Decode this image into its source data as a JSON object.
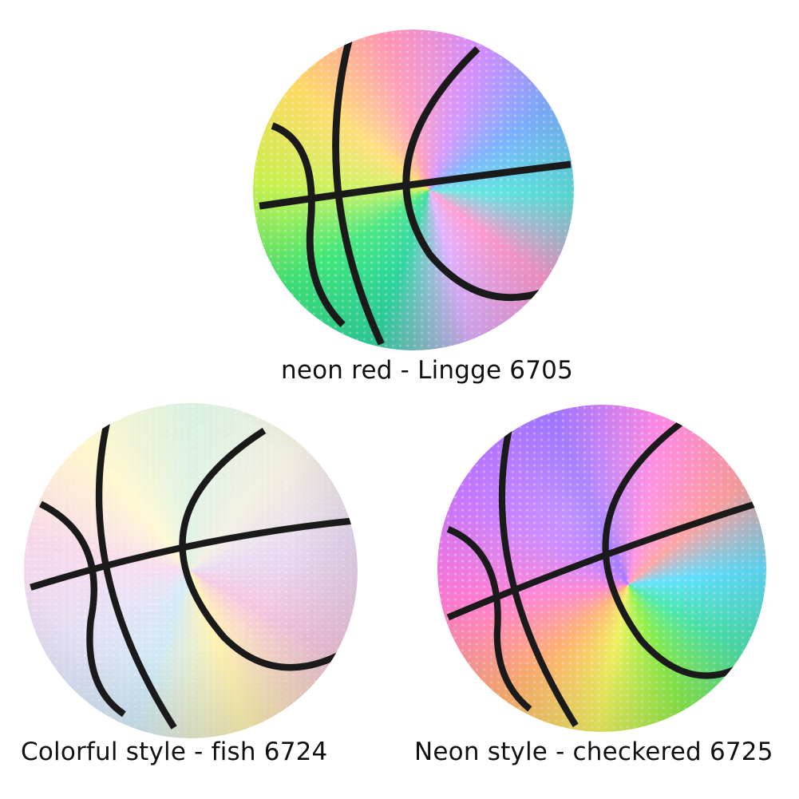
{
  "products": [
    {
      "caption": "neon red - Lingge 6705",
      "image": "holographic reflective basketball, hexagon pattern"
    },
    {
      "caption": "Colorful style - fish 6724",
      "image": "holographic reflective basketball, fish-scale pattern"
    },
    {
      "caption": "Neon style - checkered 6725",
      "image": "holographic reflective basketball, honeycomb pattern"
    }
  ],
  "colors": {
    "background": "#ffffff",
    "text": "#111111",
    "seam": "#1a1a1a"
  }
}
